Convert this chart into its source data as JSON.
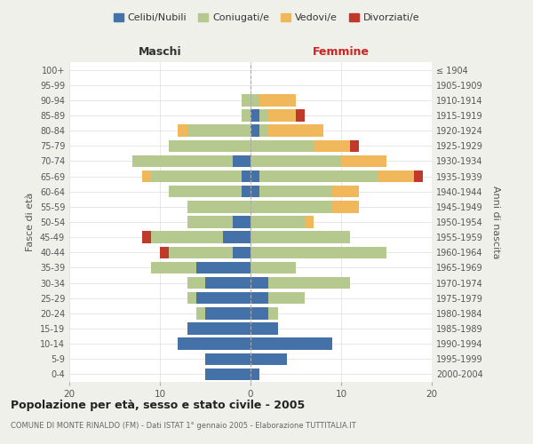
{
  "age_groups": [
    "0-4",
    "5-9",
    "10-14",
    "15-19",
    "20-24",
    "25-29",
    "30-34",
    "35-39",
    "40-44",
    "45-49",
    "50-54",
    "55-59",
    "60-64",
    "65-69",
    "70-74",
    "75-79",
    "80-84",
    "85-89",
    "90-94",
    "95-99",
    "100+"
  ],
  "birth_years": [
    "2000-2004",
    "1995-1999",
    "1990-1994",
    "1985-1989",
    "1980-1984",
    "1975-1979",
    "1970-1974",
    "1965-1969",
    "1960-1964",
    "1955-1959",
    "1950-1954",
    "1945-1949",
    "1940-1944",
    "1935-1939",
    "1930-1934",
    "1925-1929",
    "1920-1924",
    "1915-1919",
    "1910-1914",
    "1905-1909",
    "≤ 1904"
  ],
  "maschi": {
    "celibi": [
      5,
      5,
      8,
      7,
      5,
      6,
      5,
      6,
      2,
      3,
      2,
      0,
      1,
      1,
      2,
      0,
      0,
      0,
      0,
      0,
      0
    ],
    "coniugati": [
      0,
      0,
      0,
      0,
      1,
      1,
      2,
      5,
      7,
      8,
      5,
      7,
      8,
      10,
      11,
      9,
      7,
      1,
      1,
      0,
      0
    ],
    "vedovi": [
      0,
      0,
      0,
      0,
      0,
      0,
      0,
      0,
      0,
      0,
      0,
      0,
      0,
      1,
      0,
      0,
      1,
      0,
      0,
      0,
      0
    ],
    "divorziati": [
      0,
      0,
      0,
      0,
      0,
      0,
      0,
      0,
      1,
      1,
      0,
      0,
      0,
      0,
      0,
      0,
      0,
      0,
      0,
      0,
      0
    ]
  },
  "femmine": {
    "nubili": [
      1,
      4,
      9,
      3,
      2,
      2,
      2,
      0,
      0,
      0,
      0,
      0,
      1,
      1,
      0,
      0,
      1,
      1,
      0,
      0,
      0
    ],
    "coniugate": [
      0,
      0,
      0,
      0,
      1,
      4,
      9,
      5,
      15,
      11,
      6,
      9,
      8,
      13,
      10,
      7,
      1,
      1,
      1,
      0,
      0
    ],
    "vedove": [
      0,
      0,
      0,
      0,
      0,
      0,
      0,
      0,
      0,
      0,
      1,
      3,
      3,
      4,
      5,
      4,
      6,
      3,
      4,
      0,
      0
    ],
    "divorziate": [
      0,
      0,
      0,
      0,
      0,
      0,
      0,
      0,
      0,
      0,
      0,
      0,
      0,
      1,
      0,
      1,
      0,
      1,
      0,
      0,
      0
    ]
  },
  "colors": {
    "celibi_nubili": "#4472a8",
    "coniugati": "#b5c98e",
    "vedovi": "#f0b85a",
    "divorziati": "#c0392b"
  },
  "legend_labels": [
    "Celibi/Nubili",
    "Coniugati/e",
    "Vedovi/e",
    "Divorziati/e"
  ],
  "title": "Popolazione per età, sesso e stato civile - 2005",
  "subtitle": "COMUNE DI MONTE RINALDO (FM) - Dati ISTAT 1° gennaio 2005 - Elaborazione TUTTITALIA.IT",
  "ylabel_left": "Fasce di età",
  "ylabel_right": "Anni di nascita",
  "xlabel_left": "Maschi",
  "xlabel_right": "Femmine",
  "xlim": [
    -20,
    20
  ],
  "bg_color": "#f0f0eb",
  "plot_bg_color": "#ffffff"
}
